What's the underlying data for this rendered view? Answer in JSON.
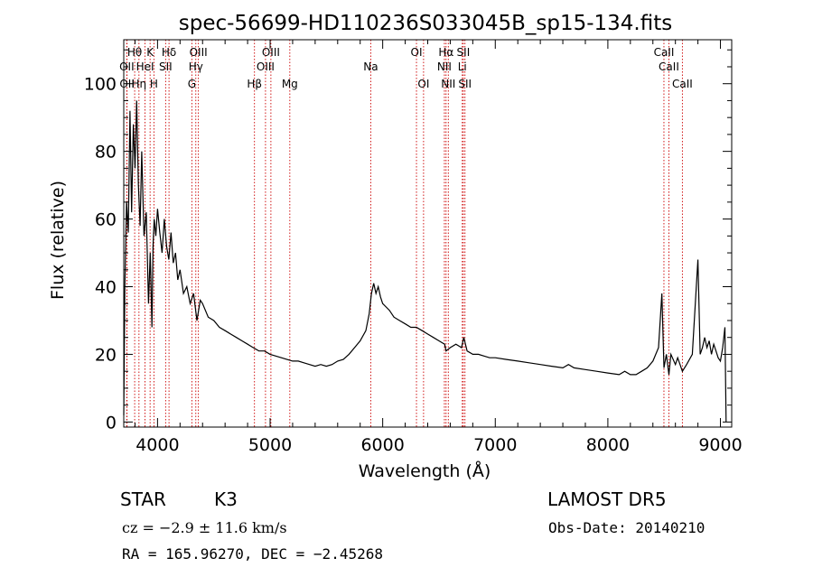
{
  "chart_data": {
    "type": "line",
    "title": "spec-56699-HD110236S033045B_sp15-134.fits",
    "xlabel": "Wavelength (Å)",
    "ylabel": "Flux (relative)",
    "xlim": [
      3700,
      9100
    ],
    "ylim": [
      -1.5,
      113
    ],
    "xticks": [
      4000,
      5000,
      6000,
      7000,
      8000,
      9000
    ],
    "yticks": [
      0,
      20,
      40,
      60,
      80,
      100
    ],
    "xtick_labels": [
      "4000",
      "5000",
      "6000",
      "7000",
      "8000",
      "9000"
    ],
    "ytick_labels": [
      "0",
      "20",
      "40",
      "60",
      "80",
      "100"
    ],
    "series": [
      {
        "line_color": "#000000",
        "x": [
          3700,
          3710,
          3725,
          3740,
          3755,
          3770,
          3785,
          3800,
          3815,
          3830,
          3845,
          3860,
          3880,
          3900,
          3920,
          3935,
          3950,
          3960,
          3970,
          3985,
          4000,
          4020,
          4040,
          4060,
          4080,
          4100,
          4120,
          4140,
          4160,
          4180,
          4200,
          4230,
          4260,
          4290,
          4320,
          4350,
          4380,
          4400,
          4450,
          4500,
          4550,
          4600,
          4650,
          4700,
          4750,
          4800,
          4850,
          4900,
          4950,
          5000,
          5050,
          5100,
          5150,
          5200,
          5250,
          5300,
          5350,
          5400,
          5450,
          5500,
          5550,
          5600,
          5650,
          5700,
          5750,
          5800,
          5850,
          5880,
          5900,
          5920,
          5940,
          5960,
          5980,
          6000,
          6030,
          6060,
          6100,
          6150,
          6200,
          6250,
          6300,
          6350,
          6400,
          6450,
          6500,
          6550,
          6563,
          6600,
          6650,
          6700,
          6720,
          6750,
          6800,
          6850,
          6900,
          6950,
          7000,
          7100,
          7200,
          7300,
          7400,
          7500,
          7600,
          7650,
          7700,
          7800,
          7900,
          8000,
          8100,
          8150,
          8200,
          8250,
          8300,
          8350,
          8400,
          8450,
          8480,
          8498,
          8520,
          8542,
          8560,
          8600,
          8620,
          8662,
          8700,
          8750,
          8800,
          8820,
          8840,
          8860,
          8880,
          8900,
          8920,
          8940,
          8960,
          8980,
          9000,
          9020,
          9040,
          9050
        ],
        "y": [
          2,
          40,
          65,
          56,
          92,
          62,
          88,
          75,
          95,
          70,
          58,
          80,
          55,
          62,
          35,
          50,
          28,
          52,
          60,
          55,
          63,
          56,
          50,
          60,
          52,
          48,
          56,
          47,
          50,
          42,
          45,
          38,
          40,
          35,
          38,
          30,
          36,
          35,
          31,
          30,
          28,
          27,
          26,
          25,
          24,
          23,
          22,
          21,
          21,
          20,
          19.5,
          19,
          18.5,
          18,
          18,
          17.5,
          17,
          16.5,
          17,
          16.5,
          17,
          18,
          18.5,
          20,
          22,
          24,
          27,
          32,
          38,
          41,
          38,
          40,
          37,
          35,
          34,
          33,
          31,
          30,
          29,
          28,
          28,
          27,
          26,
          25,
          24,
          23,
          21,
          22,
          23,
          22,
          25,
          21,
          20,
          20,
          19.5,
          19,
          19,
          18.5,
          18,
          17.5,
          17,
          16.5,
          16,
          17,
          16,
          15.5,
          15,
          14.5,
          14,
          15,
          14,
          14,
          15,
          16,
          18,
          22,
          38,
          16,
          20,
          14,
          20,
          17,
          19,
          15,
          17,
          20,
          48,
          20,
          22,
          25,
          22,
          24,
          20,
          23,
          21,
          19,
          18,
          22,
          28,
          0
        ]
      }
    ],
    "annotations": [
      {
        "label": "Hθ",
        "x": 3797,
        "row": 0
      },
      {
        "label": "OII",
        "x": 3727,
        "row": 1
      },
      {
        "label": "OII",
        "x": 3729,
        "row": 2
      },
      {
        "label": "Hη",
        "x": 3835,
        "row": 2
      },
      {
        "label": "HeI",
        "x": 3889,
        "row": 1
      },
      {
        "label": "K",
        "x": 3934,
        "row": 0
      },
      {
        "label": "H",
        "x": 3968,
        "row": 2
      },
      {
        "label": "Hδ",
        "x": 4102,
        "row": 0
      },
      {
        "label": "SII",
        "x": 4072,
        "row": 1
      },
      {
        "label": "OIII",
        "x": 4363,
        "row": 0
      },
      {
        "label": "Hγ",
        "x": 4340,
        "row": 1
      },
      {
        "label": "G",
        "x": 4305,
        "row": 2
      },
      {
        "label": "Hβ",
        "x": 4861,
        "row": 2
      },
      {
        "label": "OIII",
        "x": 5007,
        "row": 0
      },
      {
        "label": "OIII",
        "x": 4959,
        "row": 1
      },
      {
        "label": "Mg",
        "x": 5175,
        "row": 2
      },
      {
        "label": "Na",
        "x": 5894,
        "row": 1
      },
      {
        "label": "OI",
        "x": 6300,
        "row": 0
      },
      {
        "label": "OI",
        "x": 6363,
        "row": 2
      },
      {
        "label": "Hα",
        "x": 6563,
        "row": 0
      },
      {
        "label": "NII",
        "x": 6548,
        "row": 1
      },
      {
        "label": "NII",
        "x": 6583,
        "row": 2
      },
      {
        "label": "SII",
        "x": 6716,
        "row": 0
      },
      {
        "label": "Li",
        "x": 6707,
        "row": 1
      },
      {
        "label": "SII",
        "x": 6731,
        "row": 2
      },
      {
        "label": "CaII",
        "x": 8498,
        "row": 0
      },
      {
        "label": "CaII",
        "x": 8542,
        "row": 1
      },
      {
        "label": "CaII",
        "x": 8662,
        "row": 2
      }
    ],
    "line_marker_color": "#cc0000",
    "grid": false,
    "legend": "none"
  },
  "info": {
    "object_class": "STAR",
    "subclass": "K3",
    "survey": "LAMOST DR5",
    "redshift": "cz = −2.9 ± 11.6 km/s",
    "obs_date": "Obs-Date: 20140210",
    "coords": "RA = 165.96270, DEC =  −2.45268"
  }
}
